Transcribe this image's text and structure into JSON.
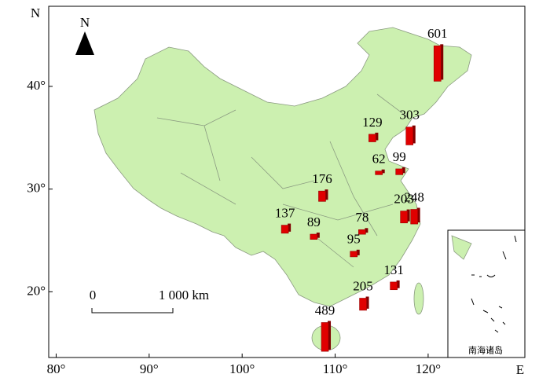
{
  "map": {
    "xlim": [
      79.2,
      130.4
    ],
    "ylim": [
      13.6,
      47.8
    ],
    "xticks": [
      {
        "value": 80,
        "label": "80°"
      },
      {
        "value": 90,
        "label": "90°"
      },
      {
        "value": 100,
        "label": "100°"
      },
      {
        "value": 110,
        "label": "110°"
      },
      {
        "value": 120,
        "label": "120°"
      }
    ],
    "yticks": [
      {
        "value": 20,
        "label": "20°"
      },
      {
        "value": 30,
        "label": "30°"
      },
      {
        "value": 40,
        "label": "40°"
      }
    ],
    "x_axis_label": "E",
    "y_axis_label": "N",
    "north_label": "N",
    "scale_bar": {
      "start": "0",
      "end": "1 000 km"
    },
    "inset_label": "南海诸岛",
    "bar_color": "#e00000",
    "bars": [
      {
        "lon": 121.0,
        "lat": 40.5,
        "value": 601
      },
      {
        "lon": 118.0,
        "lat": 34.3,
        "value": 303
      },
      {
        "lon": 114.0,
        "lat": 34.6,
        "value": 129
      },
      {
        "lon": 114.7,
        "lat": 31.4,
        "value": 62
      },
      {
        "lon": 116.9,
        "lat": 31.4,
        "value": 99
      },
      {
        "lon": 108.6,
        "lat": 28.8,
        "value": 176
      },
      {
        "lon": 117.4,
        "lat": 26.7,
        "value": 203
      },
      {
        "lon": 118.5,
        "lat": 26.6,
        "value": 248
      },
      {
        "lon": 104.6,
        "lat": 25.7,
        "value": 137
      },
      {
        "lon": 107.7,
        "lat": 25.1,
        "value": 89
      },
      {
        "lon": 112.9,
        "lat": 25.6,
        "value": 78
      },
      {
        "lon": 112.0,
        "lat": 23.4,
        "value": 95
      },
      {
        "lon": 116.3,
        "lat": 20.2,
        "value": 131
      },
      {
        "lon": 113.0,
        "lat": 18.2,
        "value": 205
      },
      {
        "lon": 108.9,
        "lat": 14.2,
        "value": 489
      }
    ]
  }
}
